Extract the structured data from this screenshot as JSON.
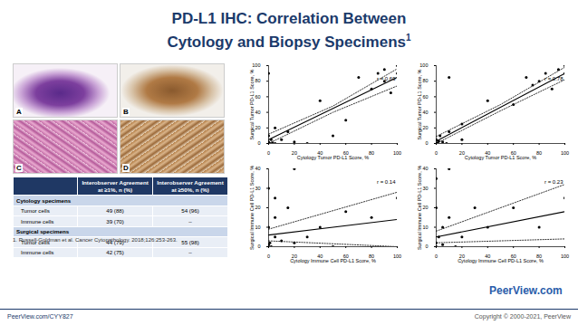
{
  "slide": {
    "title": {
      "lines": [
        "PD-L1 IHC: Correlation Between",
        "Cytology and Biopsy Specimens"
      ],
      "footnote_marker": "1"
    },
    "images": [
      "A",
      "B",
      "C",
      "D"
    ],
    "table": {
      "header": [
        "",
        "Interobserver Agreement at ≥1%, n (%)",
        "Interobserver Agreement at ≥50%, n (%)"
      ],
      "sections": [
        {
          "name": "Cytology specimens",
          "rows": [
            [
              "Tumor cells",
              "49 (88)",
              "54 (96)"
            ],
            [
              "Immune cells",
              "39 (70)",
              "–"
            ]
          ]
        },
        {
          "name": "Surgical specimens",
          "rows": [
            [
              "Tumor cells",
              "44 (79)",
              "55 (98)"
            ],
            [
              "Immune cells",
              "42 (75)",
              "–"
            ]
          ]
        }
      ]
    },
    "footnote": "1. Russell-Goldman et al. Cancer Cytopathology. 2018;126:253-263.",
    "logo": "PeerView.com",
    "url": "PeerView.com/CYY827",
    "copyright": "Copyright © 2000-2021, PeerView"
  },
  "chart_data": [
    {
      "type": "scatter",
      "x_label": "Cytology Tumor PD-L1 Score, %",
      "y_label": "Surgical Tumor PD-L1 Score, %",
      "annotation": "r = 0.69",
      "xlim": [
        0,
        100
      ],
      "ylim": [
        0,
        100
      ],
      "xticks": [
        0,
        20,
        40,
        60,
        80,
        100
      ],
      "yticks": [
        0,
        20,
        40,
        60,
        80,
        100
      ],
      "series": [
        {
          "type": "scatter",
          "marker": "circle",
          "color": "#000000",
          "x": [
            0,
            0,
            1,
            2,
            3,
            5,
            0,
            5,
            0,
            10,
            15,
            20,
            30,
            40,
            50,
            60,
            70,
            80,
            85,
            90,
            90,
            95,
            100,
            100
          ],
          "values": [
            0,
            2,
            0,
            5,
            1,
            0,
            10,
            20,
            90,
            5,
            15,
            2,
            0,
            55,
            10,
            30,
            85,
            70,
            90,
            80,
            95,
            65,
            100,
            90
          ]
        },
        {
          "type": "line",
          "line_style": "solid",
          "color": "#000000",
          "x": [
            0,
            100
          ],
          "values": [
            5,
            85
          ]
        },
        {
          "type": "line",
          "line_style": "dotted",
          "color": "#000000",
          "x": [
            0,
            50,
            100
          ],
          "values": [
            12,
            48,
            96
          ]
        },
        {
          "type": "line",
          "line_style": "dotted",
          "color": "#000000",
          "x": [
            0,
            50,
            100
          ],
          "values": [
            0,
            40,
            74
          ]
        }
      ]
    },
    {
      "type": "scatter",
      "x_label": "Cytology Tumor PD-L1 Score, %",
      "y_label": "Surgical Tumor PD-L1 Score, %",
      "annotation": "r = 0.78",
      "xlim": [
        0,
        100
      ],
      "ylim": [
        0,
        100
      ],
      "xticks": [
        0,
        20,
        40,
        60,
        80,
        100
      ],
      "yticks": [
        0,
        20,
        40,
        60,
        80,
        100
      ],
      "series": [
        {
          "type": "scatter",
          "marker": "circle",
          "color": "#000000",
          "x": [
            0,
            1,
            2,
            0,
            5,
            3,
            10,
            8,
            20,
            20,
            40,
            60,
            70,
            75,
            80,
            85,
            90,
            95,
            100,
            100,
            10
          ],
          "values": [
            0,
            1,
            3,
            5,
            2,
            10,
            15,
            0,
            25,
            5,
            55,
            50,
            85,
            75,
            80,
            90,
            70,
            95,
            100,
            90,
            85
          ]
        },
        {
          "type": "line",
          "line_style": "solid",
          "color": "#000000",
          "x": [
            0,
            100
          ],
          "values": [
            3,
            90
          ]
        },
        {
          "type": "line",
          "line_style": "dotted",
          "color": "#000000",
          "x": [
            0,
            50,
            100
          ],
          "values": [
            9,
            50,
            98
          ]
        },
        {
          "type": "line",
          "line_style": "dotted",
          "color": "#000000",
          "x": [
            0,
            50,
            100
          ],
          "values": [
            0,
            42,
            82
          ]
        }
      ]
    },
    {
      "type": "scatter",
      "x_label": "Cytology Immune Cell PD-L1 Score, %",
      "y_label": "Surgical Immune Cell PD-L1 Score, %",
      "annotation": "r = 0.14",
      "xlim": [
        0,
        100
      ],
      "ylim": [
        0,
        40
      ],
      "xticks": [
        0,
        20,
        40,
        60,
        80,
        100
      ],
      "yticks": [
        0,
        10,
        20,
        30,
        40
      ],
      "series": [
        {
          "type": "scatter",
          "marker": "circle",
          "color": "#000000",
          "x": [
            0,
            0,
            1,
            2,
            5,
            0,
            5,
            10,
            20,
            0,
            15,
            30,
            40,
            60,
            80,
            100,
            5,
            20,
            50
          ],
          "values": [
            0,
            1,
            2,
            0,
            5,
            10,
            15,
            3,
            40,
            30,
            20,
            5,
            10,
            18,
            15,
            25,
            25,
            2,
            0
          ]
        },
        {
          "type": "line",
          "line_style": "solid",
          "color": "#000000",
          "x": [
            0,
            100
          ],
          "values": [
            6,
            14
          ]
        },
        {
          "type": "line",
          "line_style": "dotted",
          "color": "#000000",
          "x": [
            0,
            100
          ],
          "values": [
            9,
            28
          ]
        },
        {
          "type": "line",
          "line_style": "dotted",
          "color": "#000000",
          "x": [
            0,
            100
          ],
          "values": [
            3,
            0
          ]
        }
      ]
    },
    {
      "type": "scatter",
      "x_label": "Cytology Immune Cell PD-L1 Score, %",
      "y_label": "Surgical Immune Cell PD-L1 Score, %",
      "annotation": "r = 0.23",
      "xlim": [
        0,
        100
      ],
      "ylim": [
        0,
        40
      ],
      "xticks": [
        0,
        20,
        40,
        60,
        80,
        100
      ],
      "yticks": [
        0,
        10,
        20,
        30,
        40
      ],
      "series": [
        {
          "type": "scatter",
          "marker": "circle",
          "color": "#000000",
          "x": [
            0,
            0,
            2,
            5,
            10,
            0,
            10,
            20,
            30,
            40,
            60,
            80,
            100,
            0,
            5,
            15
          ],
          "values": [
            0,
            2,
            5,
            10,
            40,
            20,
            15,
            5,
            20,
            10,
            20,
            10,
            25,
            35,
            1,
            0
          ]
        },
        {
          "type": "line",
          "line_style": "solid",
          "color": "#000000",
          "x": [
            0,
            100
          ],
          "values": [
            5,
            18
          ]
        },
        {
          "type": "line",
          "line_style": "dotted",
          "color": "#000000",
          "x": [
            0,
            100
          ],
          "values": [
            8,
            32
          ]
        },
        {
          "type": "line",
          "line_style": "dotted",
          "color": "#000000",
          "x": [
            0,
            100
          ],
          "values": [
            2,
            4
          ]
        }
      ]
    }
  ]
}
